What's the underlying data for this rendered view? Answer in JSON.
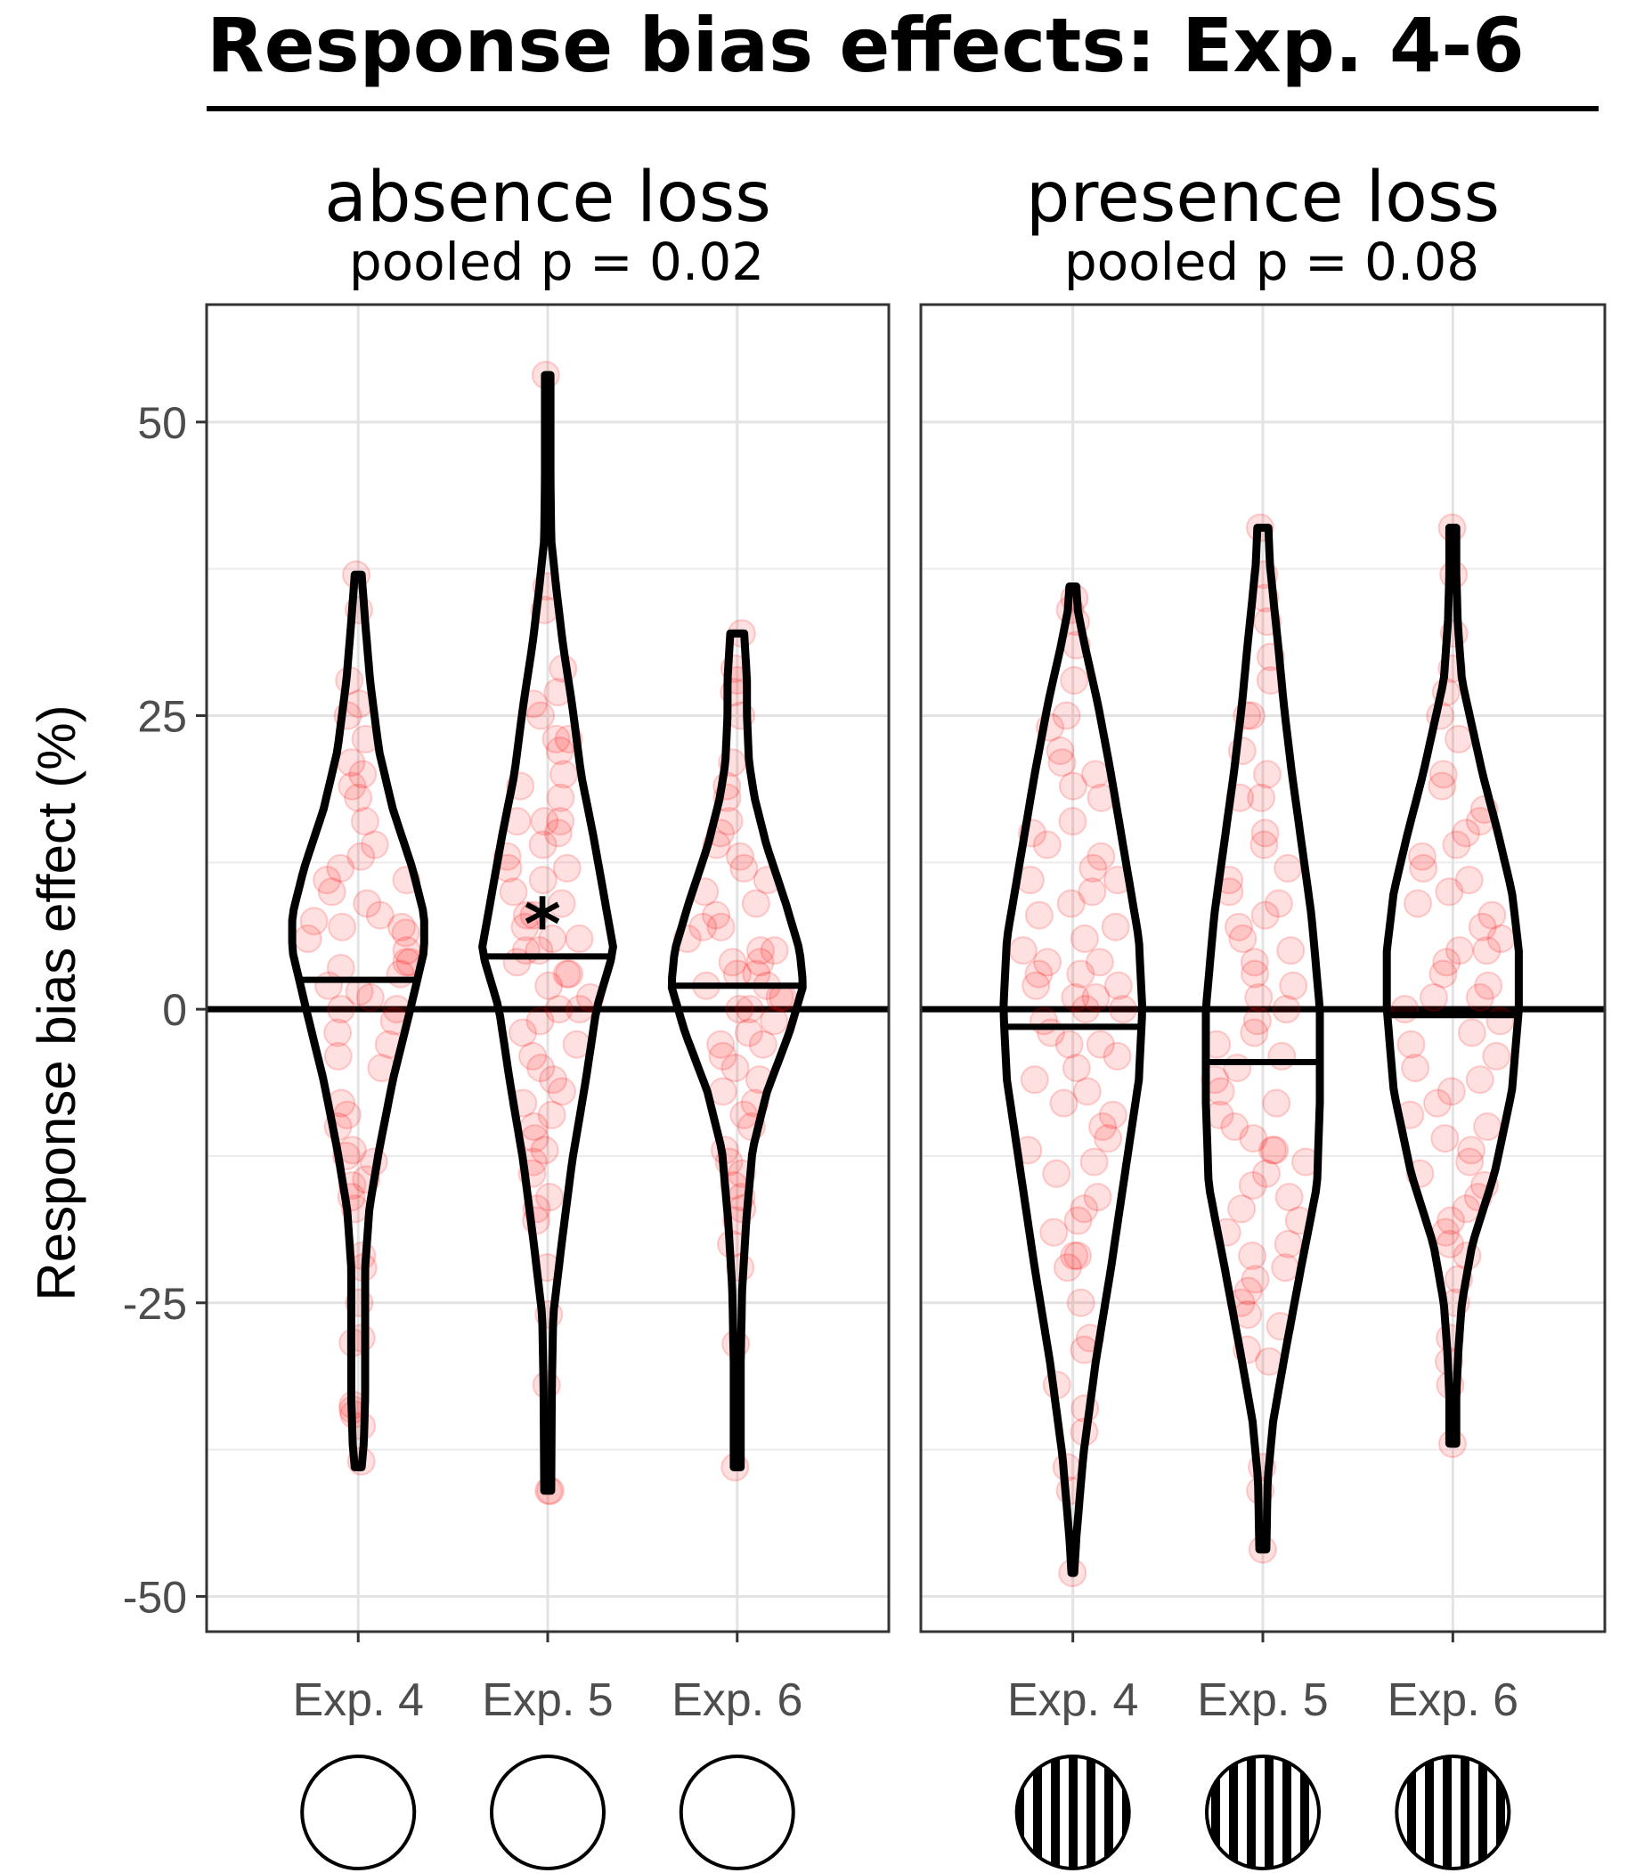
{
  "chart_data": {
    "type": "violin",
    "title": "Response bias effects: Exp. 4-6",
    "ylabel": "Response bias effect (%)",
    "xlabel": "",
    "ylim": [
      -53,
      60
    ],
    "yticks": [
      -50,
      -25,
      0,
      25,
      50
    ],
    "ytick_labels": [
      "-50",
      "-25",
      "0",
      "25",
      "50"
    ],
    "grid": true,
    "reference_line": 0,
    "point_color": "#ff0000",
    "panels": [
      {
        "name": "absence loss",
        "subtitle": "pooled p = 0.02",
        "stimulus": "blank-circle-icon",
        "groups": [
          {
            "category": "Exp. 4",
            "mean": 2.5,
            "significance": "",
            "range": [
              -39,
              37
            ],
            "profile": [
              [
                -39,
                0.05
              ],
              [
                -37,
                0.08
              ],
              [
                -33,
                0.1
              ],
              [
                -28,
                0.1
              ],
              [
                -22,
                0.1
              ],
              [
                -17,
                0.16
              ],
              [
                -12,
                0.3
              ],
              [
                -6,
                0.5
              ],
              [
                0,
                0.75
              ],
              [
                5,
                0.95
              ],
              [
                8,
                0.95
              ],
              [
                12,
                0.78
              ],
              [
                17,
                0.5
              ],
              [
                22,
                0.3
              ],
              [
                28,
                0.17
              ],
              [
                33,
                0.1
              ],
              [
                37,
                0.05
              ]
            ],
            "points": [
              -34.5,
              -35.5,
              -38.5,
              -33.7,
              -34.1,
              -28.4,
              -28,
              -25,
              -22,
              -21,
              -17,
              -16,
              -15,
              -14.5,
              -13,
              -12.5,
              -12,
              -10,
              -9,
              -8,
              -5,
              -4,
              -3,
              -2,
              -1,
              0,
              0,
              1,
              1.5,
              2,
              3,
              3.5,
              4,
              4,
              5,
              6,
              6.5,
              7,
              7,
              7.5,
              8,
              9,
              10,
              11,
              11,
              12,
              13,
              14,
              16,
              18,
              19,
              20,
              21,
              23,
              25,
              26,
              28,
              34,
              37
            ]
          },
          {
            "category": "Exp. 5",
            "mean": 4.5,
            "significance": "*",
            "range": [
              -41,
              54
            ],
            "profile": [
              [
                -41,
                0.05
              ],
              [
                -32,
                0.06
              ],
              [
                -26,
                0.08
              ],
              [
                -20,
                0.2
              ],
              [
                -13,
                0.35
              ],
              [
                -6,
                0.55
              ],
              [
                0,
                0.7
              ],
              [
                5,
                0.95
              ],
              [
                10,
                0.8
              ],
              [
                15,
                0.65
              ],
              [
                20,
                0.48
              ],
              [
                26,
                0.35
              ],
              [
                31,
                0.22
              ],
              [
                36,
                0.12
              ],
              [
                40,
                0.05
              ],
              [
                45,
                0.04
              ],
              [
                54,
                0.04
              ]
            ],
            "points": [
              -41,
              -41,
              -32,
              -26,
              -22,
              -18,
              -17,
              -16,
              -14,
              -13,
              -12,
              -11,
              -10,
              -9,
              -8,
              -7,
              -6,
              -5,
              -4,
              -3,
              -2,
              -1,
              0,
              0,
              1,
              2,
              3,
              3,
              4,
              5,
              5,
              6,
              6,
              7,
              8,
              8,
              9,
              10,
              11,
              12,
              12,
              13,
              14,
              15,
              16,
              16,
              16,
              18,
              19,
              20,
              22,
              23,
              23,
              25,
              26,
              27,
              29,
              34,
              36,
              54
            ]
          },
          {
            "category": "Exp. 6",
            "mean": 2,
            "significance": "",
            "range": [
              -39,
              32
            ],
            "profile": [
              [
                -39,
                0.05
              ],
              [
                -30,
                0.05
              ],
              [
                -24,
                0.07
              ],
              [
                -18,
                0.13
              ],
              [
                -12,
                0.22
              ],
              [
                -7,
                0.43
              ],
              [
                -2,
                0.75
              ],
              [
                2,
                0.95
              ],
              [
                5,
                0.9
              ],
              [
                9,
                0.7
              ],
              [
                14,
                0.42
              ],
              [
                18,
                0.25
              ],
              [
                21,
                0.17
              ],
              [
                25,
                0.14
              ],
              [
                28,
                0.14
              ],
              [
                32,
                0.1
              ]
            ],
            "points": [
              -39,
              -28.5,
              -22,
              -20,
              -18,
              -17,
              -16,
              -15,
              -14,
              -13,
              -12,
              -10,
              -9,
              -8,
              -7,
              -6,
              -5,
              -4,
              -3,
              -3,
              -2,
              -1,
              0,
              0,
              1,
              1,
              2,
              2,
              3,
              3,
              4,
              4,
              5,
              5,
              6,
              7,
              7,
              8,
              9,
              10,
              11,
              12,
              13,
              14,
              15,
              16,
              18,
              19,
              21,
              25,
              27,
              28,
              29,
              32
            ]
          }
        ]
      },
      {
        "name": "presence loss",
        "subtitle": "pooled p = 0.08",
        "stimulus": "striped-circle-icon",
        "groups": [
          {
            "category": "Exp. 4",
            "mean": -1.5,
            "significance": "",
            "range": [
              -48,
              36
            ],
            "profile": [
              [
                -48,
                0.02
              ],
              [
                -45,
                0.05
              ],
              [
                -38,
                0.15
              ],
              [
                -30,
                0.33
              ],
              [
                -22,
                0.55
              ],
              [
                -14,
                0.75
              ],
              [
                -6,
                0.95
              ],
              [
                0,
                1
              ],
              [
                6,
                0.95
              ],
              [
                13,
                0.75
              ],
              [
                20,
                0.55
              ],
              [
                26,
                0.36
              ],
              [
                31,
                0.17
              ],
              [
                34,
                0.07
              ],
              [
                36,
                0.05
              ]
            ],
            "points": [
              -48,
              -41,
              -39,
              -36,
              -34,
              -32,
              -29,
              -28,
              -25,
              -22,
              -21,
              -21,
              -19,
              -18,
              -17,
              -16,
              -14,
              -13,
              -12,
              -11,
              -10,
              -9,
              -8,
              -7,
              -6,
              -5,
              -4,
              -3,
              -3,
              -2,
              -1,
              0,
              0,
              1,
              1,
              2,
              2,
              3,
              3,
              4,
              4,
              5,
              6,
              7,
              8,
              9,
              10,
              11,
              11,
              12,
              13,
              14,
              15,
              16,
              18,
              19,
              20,
              21,
              22,
              24,
              25,
              28,
              31,
              33,
              34,
              35
            ]
          },
          {
            "category": "Exp. 5",
            "mean": -4.5,
            "significance": "",
            "range": [
              -46,
              41
            ],
            "profile": [
              [
                -46,
                0.05
              ],
              [
                -40,
                0.07
              ],
              [
                -35,
                0.15
              ],
              [
                -29,
                0.33
              ],
              [
                -22,
                0.55
              ],
              [
                -15,
                0.78
              ],
              [
                -8,
                0.82
              ],
              [
                0,
                0.82
              ],
              [
                8,
                0.7
              ],
              [
                14,
                0.56
              ],
              [
                20,
                0.42
              ],
              [
                26,
                0.3
              ],
              [
                31,
                0.22
              ],
              [
                35,
                0.15
              ],
              [
                38,
                0.1
              ],
              [
                41,
                0.08
              ]
            ],
            "points": [
              -46,
              -41,
              -39,
              -30,
              -29,
              -27,
              -26,
              -25,
              -24,
              -23,
              -22,
              -21,
              -20,
              -19,
              -18,
              -17,
              -16,
              -15,
              -14,
              -13,
              -12,
              -12,
              -11,
              -10,
              -9,
              -8,
              -7,
              -6,
              -5,
              -4,
              -3,
              -2,
              -1,
              0,
              1,
              2,
              3,
              4,
              5,
              6,
              7,
              8,
              9,
              10,
              11,
              12,
              14,
              15,
              18,
              18,
              20,
              22,
              25,
              25,
              28,
              30,
              33,
              35,
              37,
              41
            ]
          },
          {
            "category": "Exp. 6",
            "mean": -0.5,
            "significance": "",
            "range": [
              -37,
              41
            ],
            "profile": [
              [
                -37,
                0.05
              ],
              [
                -33,
                0.05
              ],
              [
                -29,
                0.08
              ],
              [
                -25,
                0.13
              ],
              [
                -20,
                0.28
              ],
              [
                -14,
                0.6
              ],
              [
                -7,
                0.85
              ],
              [
                0,
                0.95
              ],
              [
                5,
                0.95
              ],
              [
                10,
                0.85
              ],
              [
                15,
                0.65
              ],
              [
                20,
                0.43
              ],
              [
                24,
                0.28
              ],
              [
                28,
                0.13
              ],
              [
                33,
                0.07
              ],
              [
                37,
                0.05
              ],
              [
                41,
                0.05
              ]
            ],
            "points": [
              -37,
              -32,
              -30,
              -28,
              -25,
              -23,
              -21,
              -20,
              -19,
              -18,
              -17,
              -16,
              -15,
              -14,
              -13,
              -12,
              -11,
              -10,
              -9,
              -8,
              -7,
              -6,
              -5,
              -4,
              -3,
              -2,
              -1,
              0,
              1,
              1,
              2,
              3,
              4,
              5,
              5,
              6,
              7,
              8,
              9,
              10,
              11,
              12,
              13,
              14,
              15,
              16,
              17,
              19,
              20,
              23,
              25,
              27,
              29,
              32,
              37,
              41
            ]
          }
        ]
      }
    ]
  }
}
